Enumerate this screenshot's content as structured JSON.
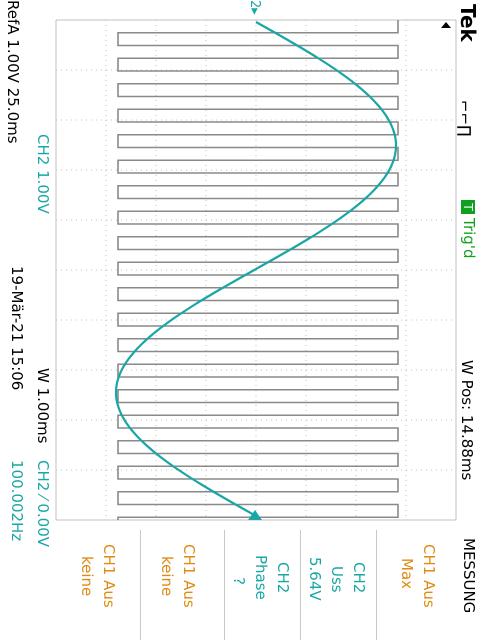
{
  "header": {
    "brand": "Tek",
    "acq_icon": "⌐⌐∏",
    "trig_marker": "T",
    "trig_status": "Trig'd",
    "wpos": "W Pos: 14.88ms"
  },
  "left_status": {
    "ref": "RefA 1.00V 25.0ms",
    "ch2_scale": "CH2  1.00V",
    "date": "19-Mär-21 15:06",
    "timebase": "W  1.00ms",
    "trigger": "CH2 ⁄ 0.00V",
    "frequency": "100.002Hz"
  },
  "measure_menu": {
    "title": "MESSUNG",
    "items": [
      {
        "line1": "CH1 Aus",
        "line2": "Max",
        "color": "#e08a12"
      },
      {
        "line1": "CH2",
        "line2": "Uss",
        "line3": "5.64V",
        "color": "#1aa6a6"
      },
      {
        "line1": "CH2",
        "line2": "Phase",
        "line3": "?",
        "color": "#1aa6a6"
      },
      {
        "line1": "CH1 Aus",
        "line2": "keine",
        "color": "#e08a12"
      },
      {
        "line1": "CH1 Aus",
        "line2": "keine",
        "color": "#e08a12"
      }
    ]
  },
  "markers": {
    "ch2_level": "2▸"
  },
  "colors": {
    "ch2": "#1aa6a6",
    "ch1": "#e08a12",
    "ref": "#8a8a8a",
    "grid": "#c0c0c0",
    "trig": "#10a020"
  }
}
